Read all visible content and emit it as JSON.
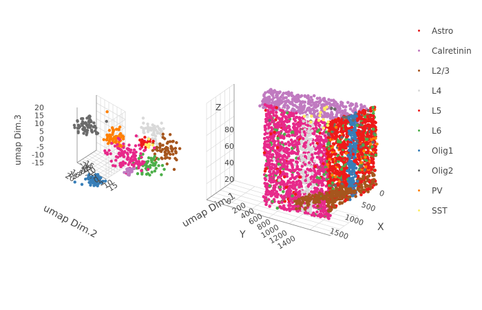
{
  "chart_data": [
    {
      "type": "scatter3d",
      "axes": {
        "x": {
          "label": "umap Dim.1",
          "ticks": [
            "-15",
            "-10",
            "-5",
            "0",
            "5",
            "10",
            "15"
          ]
        },
        "y": {
          "label": "umap Dim.2",
          "ticks": [
            "-15",
            "-10",
            "-5",
            "0",
            "5",
            "10",
            "15",
            "20"
          ]
        },
        "z": {
          "label": "umap Dim.3",
          "ticks": [
            "-15",
            "-10",
            "-5",
            "0",
            "5",
            "10",
            "15",
            "20"
          ]
        }
      },
      "grid": true
    },
    {
      "type": "scatter3d",
      "axes": {
        "x": {
          "label": "X",
          "ticks": [
            "0",
            "500",
            "1000",
            "1500"
          ]
        },
        "y": {
          "label": "Y",
          "ticks": [
            "0",
            "200",
            "400",
            "600",
            "800",
            "1000",
            "1200",
            "1400"
          ]
        },
        "z": {
          "label": "Z",
          "ticks": [
            "20",
            "40",
            "60",
            "80"
          ]
        }
      },
      "grid": true
    }
  ],
  "legend": [
    {
      "name": "Astro",
      "color": "#e41a1c"
    },
    {
      "name": "Calretinin",
      "color": "#c07ac0"
    },
    {
      "name": "L2/3",
      "color": "#a6561e"
    },
    {
      "name": "L4",
      "color": "#d9d9d9"
    },
    {
      "name": "L5",
      "color": "#ee1a1a"
    },
    {
      "name": "L6",
      "color": "#4daf4a"
    },
    {
      "name": "Olig1",
      "color": "#377eb8"
    },
    {
      "name": "Olig2",
      "color": "#6b6b6b"
    },
    {
      "name": "PV",
      "color": "#ff7f00"
    },
    {
      "name": "SST",
      "color": "#ffee66"
    }
  ],
  "colors": {
    "pink": "#e7298a"
  }
}
